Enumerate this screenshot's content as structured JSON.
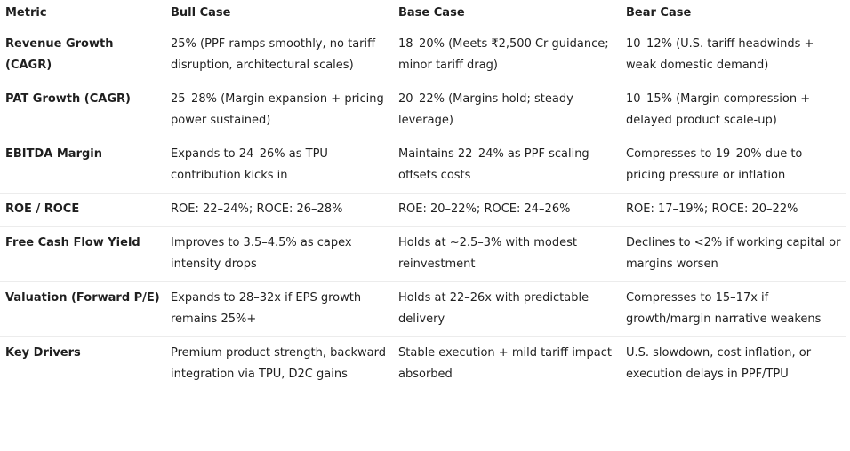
{
  "table": {
    "headers": [
      "Metric",
      "Bull Case",
      "Base Case",
      "Bear Case"
    ],
    "rows": [
      [
        "Revenue Growth (CAGR)",
        "25% (PPF ramps smoothly, no tariff disruption, architectural scales)",
        "18–20% (Meets ₹2,500 Cr guidance; minor tariff drag)",
        "10–12% (U.S. tariff headwinds + weak domestic demand)"
      ],
      [
        "PAT Growth (CAGR)",
        "25–28% (Margin expansion + pricing power sustained)",
        "20–22% (Margins hold; steady leverage)",
        "10–15% (Margin compression + delayed product scale-up)"
      ],
      [
        "EBITDA Margin",
        "Expands to 24–26% as TPU contribution kicks in",
        "Maintains 22–24% as PPF scaling offsets costs",
        "Compresses to 19–20% due to pricing pressure or inflation"
      ],
      [
        "ROE / ROCE",
        "ROE: 22–24%; ROCE: 26–28%",
        "ROE: 20–22%; ROCE: 24–26%",
        "ROE: 17–19%; ROCE: 20–22%"
      ],
      [
        "Free Cash Flow Yield",
        "Improves to 3.5–4.5% as capex intensity drops",
        "Holds at ~2.5–3% with modest reinvestment",
        "Declines to <2% if working capital or margins worsen"
      ],
      [
        "Valuation (Forward P/E)",
        "Expands to 28–32x if EPS growth remains 25%+",
        "Holds at 22–26x with predictable delivery",
        "Compresses to 15–17x if growth/margin narrative weakens"
      ],
      [
        "Key Drivers",
        "Premium product strength, backward integration via TPU, D2C gains",
        "Stable execution + mild tariff impact absorbed",
        "U.S. slowdown, cost inflation, or execution delays in PPF/TPU"
      ]
    ]
  }
}
